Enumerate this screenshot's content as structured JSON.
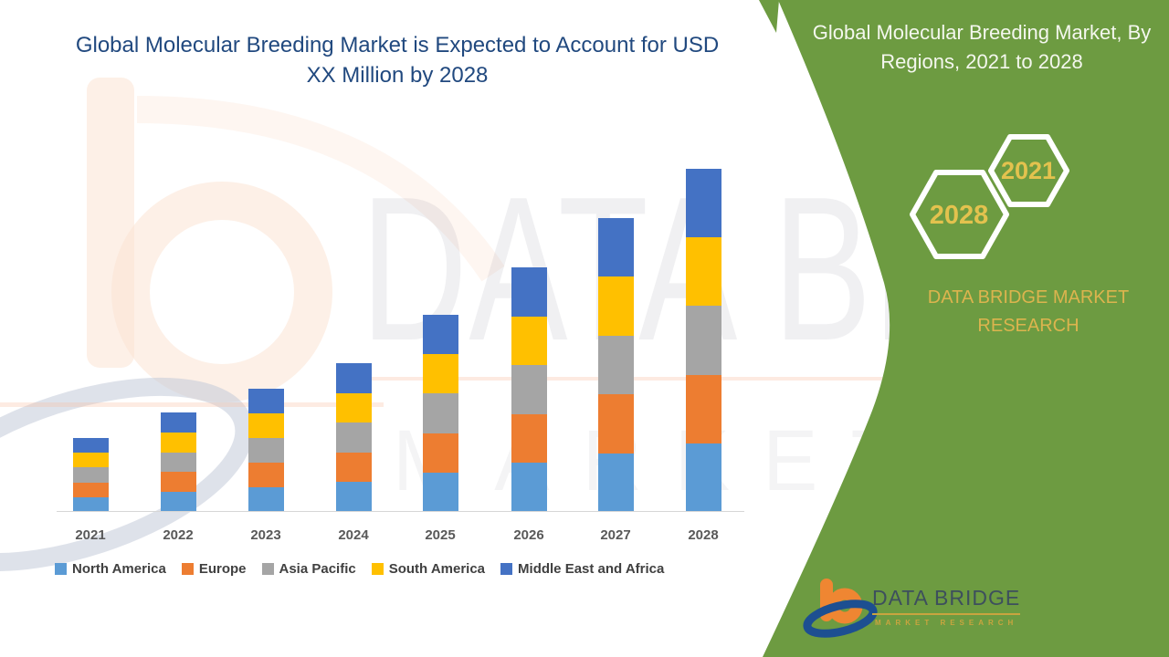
{
  "main_title": "Global Molecular Breeding Market is Expected to Account for USD XX Million by 2028",
  "side_panel": {
    "title": "Global Molecular Breeding Market, By Regions, 2021 to 2028",
    "hexagon_small_label": "2021",
    "hexagon_large_label": "2028",
    "brand_text": "DATA BRIDGE MARKET RESEARCH",
    "panel_color": "#6d9b41",
    "accent_gold": "#dcb44e"
  },
  "watermark": {
    "line1": "DATA BRIDGE",
    "line2": "MARKET RESEARCH"
  },
  "logo": {
    "name": "DATA BRIDGE",
    "tagline": "MARKET RESEARCH",
    "orange": "#ef8632",
    "navy": "#1d4f91"
  },
  "chart_data": {
    "type": "bar",
    "stacked": true,
    "title": "Global Molecular Breeding Market is Expected to Account for USD XX Million by 2028",
    "xlabel": "",
    "ylabel": "",
    "value_axis_visible": false,
    "gridlines": false,
    "legend_position": "bottom",
    "categories": [
      "2021",
      "2022",
      "2023",
      "2024",
      "2025",
      "2026",
      "2027",
      "2028"
    ],
    "series": [
      {
        "name": "North America",
        "color": "#5B9BD5",
        "values": [
          16.2,
          21.8,
          27.0,
          32.6,
          43.2,
          53.6,
          64.4,
          75.2
        ]
      },
      {
        "name": "Europe",
        "color": "#ED7D31",
        "values": [
          16.2,
          21.8,
          27.0,
          32.6,
          43.2,
          53.6,
          64.4,
          75.2
        ]
      },
      {
        "name": "Asia Pacific",
        "color": "#A5A5A5",
        "values": [
          16.2,
          21.8,
          27.0,
          32.6,
          43.2,
          53.6,
          64.4,
          75.2
        ]
      },
      {
        "name": "South America",
        "color": "#FFC000",
        "values": [
          16.2,
          21.8,
          27.0,
          32.6,
          43.2,
          53.6,
          64.4,
          75.2
        ]
      },
      {
        "name": "Middle East and Africa",
        "color": "#4472C4",
        "values": [
          16.2,
          21.8,
          27.0,
          32.6,
          43.2,
          53.6,
          64.4,
          75.2
        ]
      }
    ],
    "stack_totals_estimated": [
      81,
      109,
      135,
      163,
      216,
      268,
      322,
      376
    ],
    "values_note": "Actual figures undisclosed (USD XX Million); series values are relative units estimated from bar heights."
  }
}
